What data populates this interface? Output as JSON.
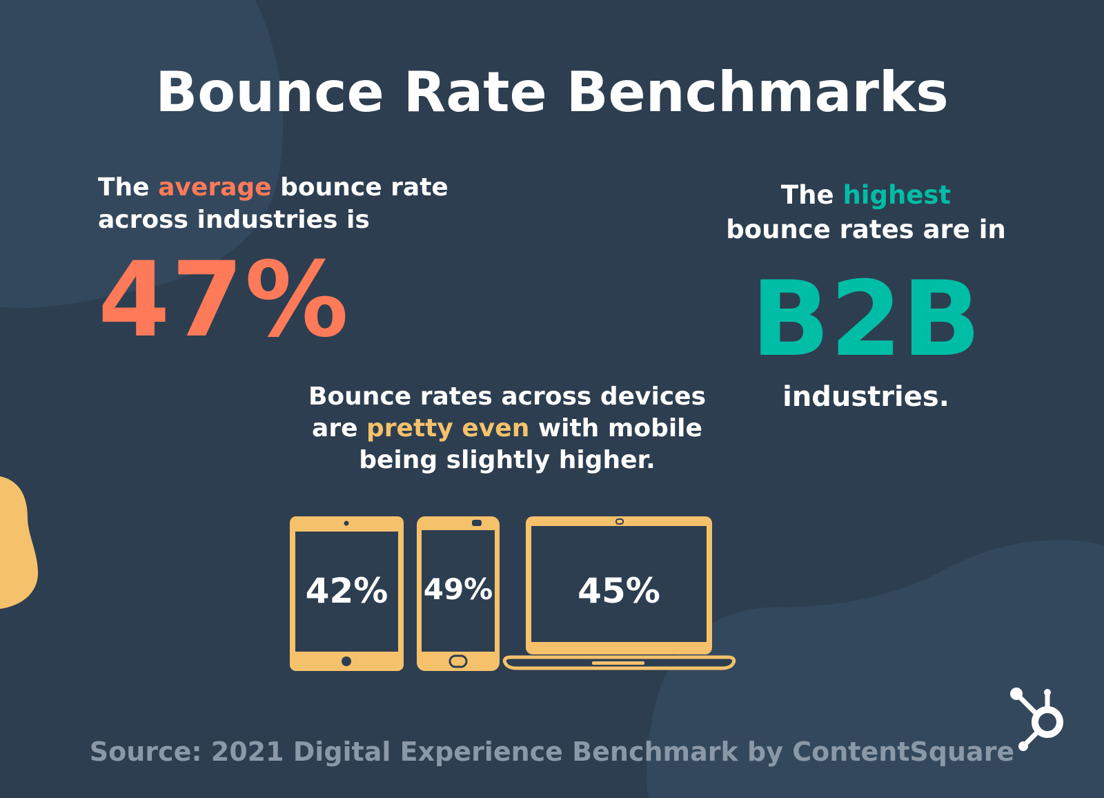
{
  "title": "Bounce Rate Benchmarks",
  "average": {
    "text_prefix": "The ",
    "text_highlight": "average",
    "text_suffix_line1": " bounce rate",
    "text_line2": "across industries is",
    "value": "47%"
  },
  "highest": {
    "text_prefix": "The ",
    "text_highlight": "highest",
    "text_line2": "bounce rates are in",
    "value": "B2B",
    "text_tail": "industries."
  },
  "devices": {
    "line1": "Bounce rates across devices",
    "line2_prefix": "are ",
    "line2_highlight": "pretty even",
    "line2_suffix": " with mobile",
    "line3": "being slightly higher.",
    "tablet_value": "42%",
    "phone_value": "49%",
    "laptop_value": "45%",
    "tablet_icon": "tablet-icon",
    "phone_icon": "smartphone-icon",
    "laptop_icon": "laptop-icon"
  },
  "source": "Source: 2021 Digital Experience Benchmark by ContentSquare",
  "logo_icon": "hubspot-sprocket-icon",
  "colors": {
    "background": "#2d3e50",
    "blob": "#34485d",
    "coral": "#ff7a59",
    "teal": "#00bda5",
    "yellow": "#f5c26b",
    "source_text": "#8a98a8"
  }
}
